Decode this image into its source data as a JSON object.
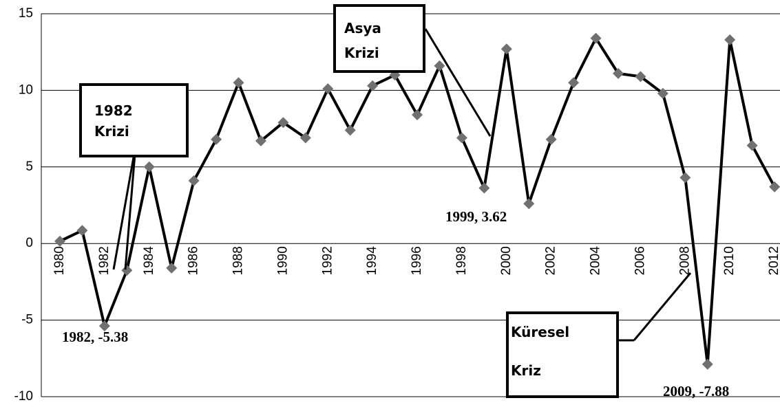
{
  "chart_data": {
    "type": "line",
    "categories": [
      "1980",
      null,
      "1982",
      null,
      "1984",
      null,
      "1986",
      null,
      "1988",
      null,
      "1990",
      null,
      "1992",
      null,
      "1994",
      null,
      "1996",
      null,
      "1998",
      null,
      "2000",
      null,
      "2002",
      null,
      "2004",
      null,
      "2006",
      null,
      "2008",
      null,
      "2010",
      null,
      "2012"
    ],
    "series": [
      {
        "name": null,
        "color": "#000000",
        "marker_color": "#707070",
        "values": [
          0.15,
          0.85,
          -5.38,
          -1.75,
          5.0,
          -1.6,
          4.1,
          6.8,
          10.5,
          6.7,
          7.9,
          6.9,
          10.1,
          7.4,
          10.3,
          11.0,
          8.4,
          11.6,
          6.9,
          3.62,
          12.7,
          2.6,
          6.8,
          10.5,
          13.4,
          11.1,
          10.9,
          9.8,
          4.3,
          -7.88,
          13.3,
          6.4,
          3.7
        ],
        "value_labels": [
          null,
          null,
          "1982, -5.38",
          null,
          null,
          null,
          null,
          null,
          null,
          null,
          null,
          null,
          null,
          null,
          null,
          null,
          null,
          null,
          null,
          "1999, 3.62",
          null,
          null,
          null,
          null,
          null,
          null,
          null,
          null,
          null,
          "2009, -7.88",
          null,
          null,
          null
        ]
      }
    ],
    "ylim": [
      -10,
      15
    ],
    "yticks": [
      -10,
      -5,
      0,
      5,
      10,
      15
    ],
    "grid": true,
    "annotations": [
      {
        "lines": [
          "1982",
          "Krizi"
        ]
      },
      {
        "lines": [
          "Asya",
          "Krizi"
        ]
      },
      {
        "lines": [
          "Küresel",
          "Kriz"
        ]
      }
    ]
  }
}
